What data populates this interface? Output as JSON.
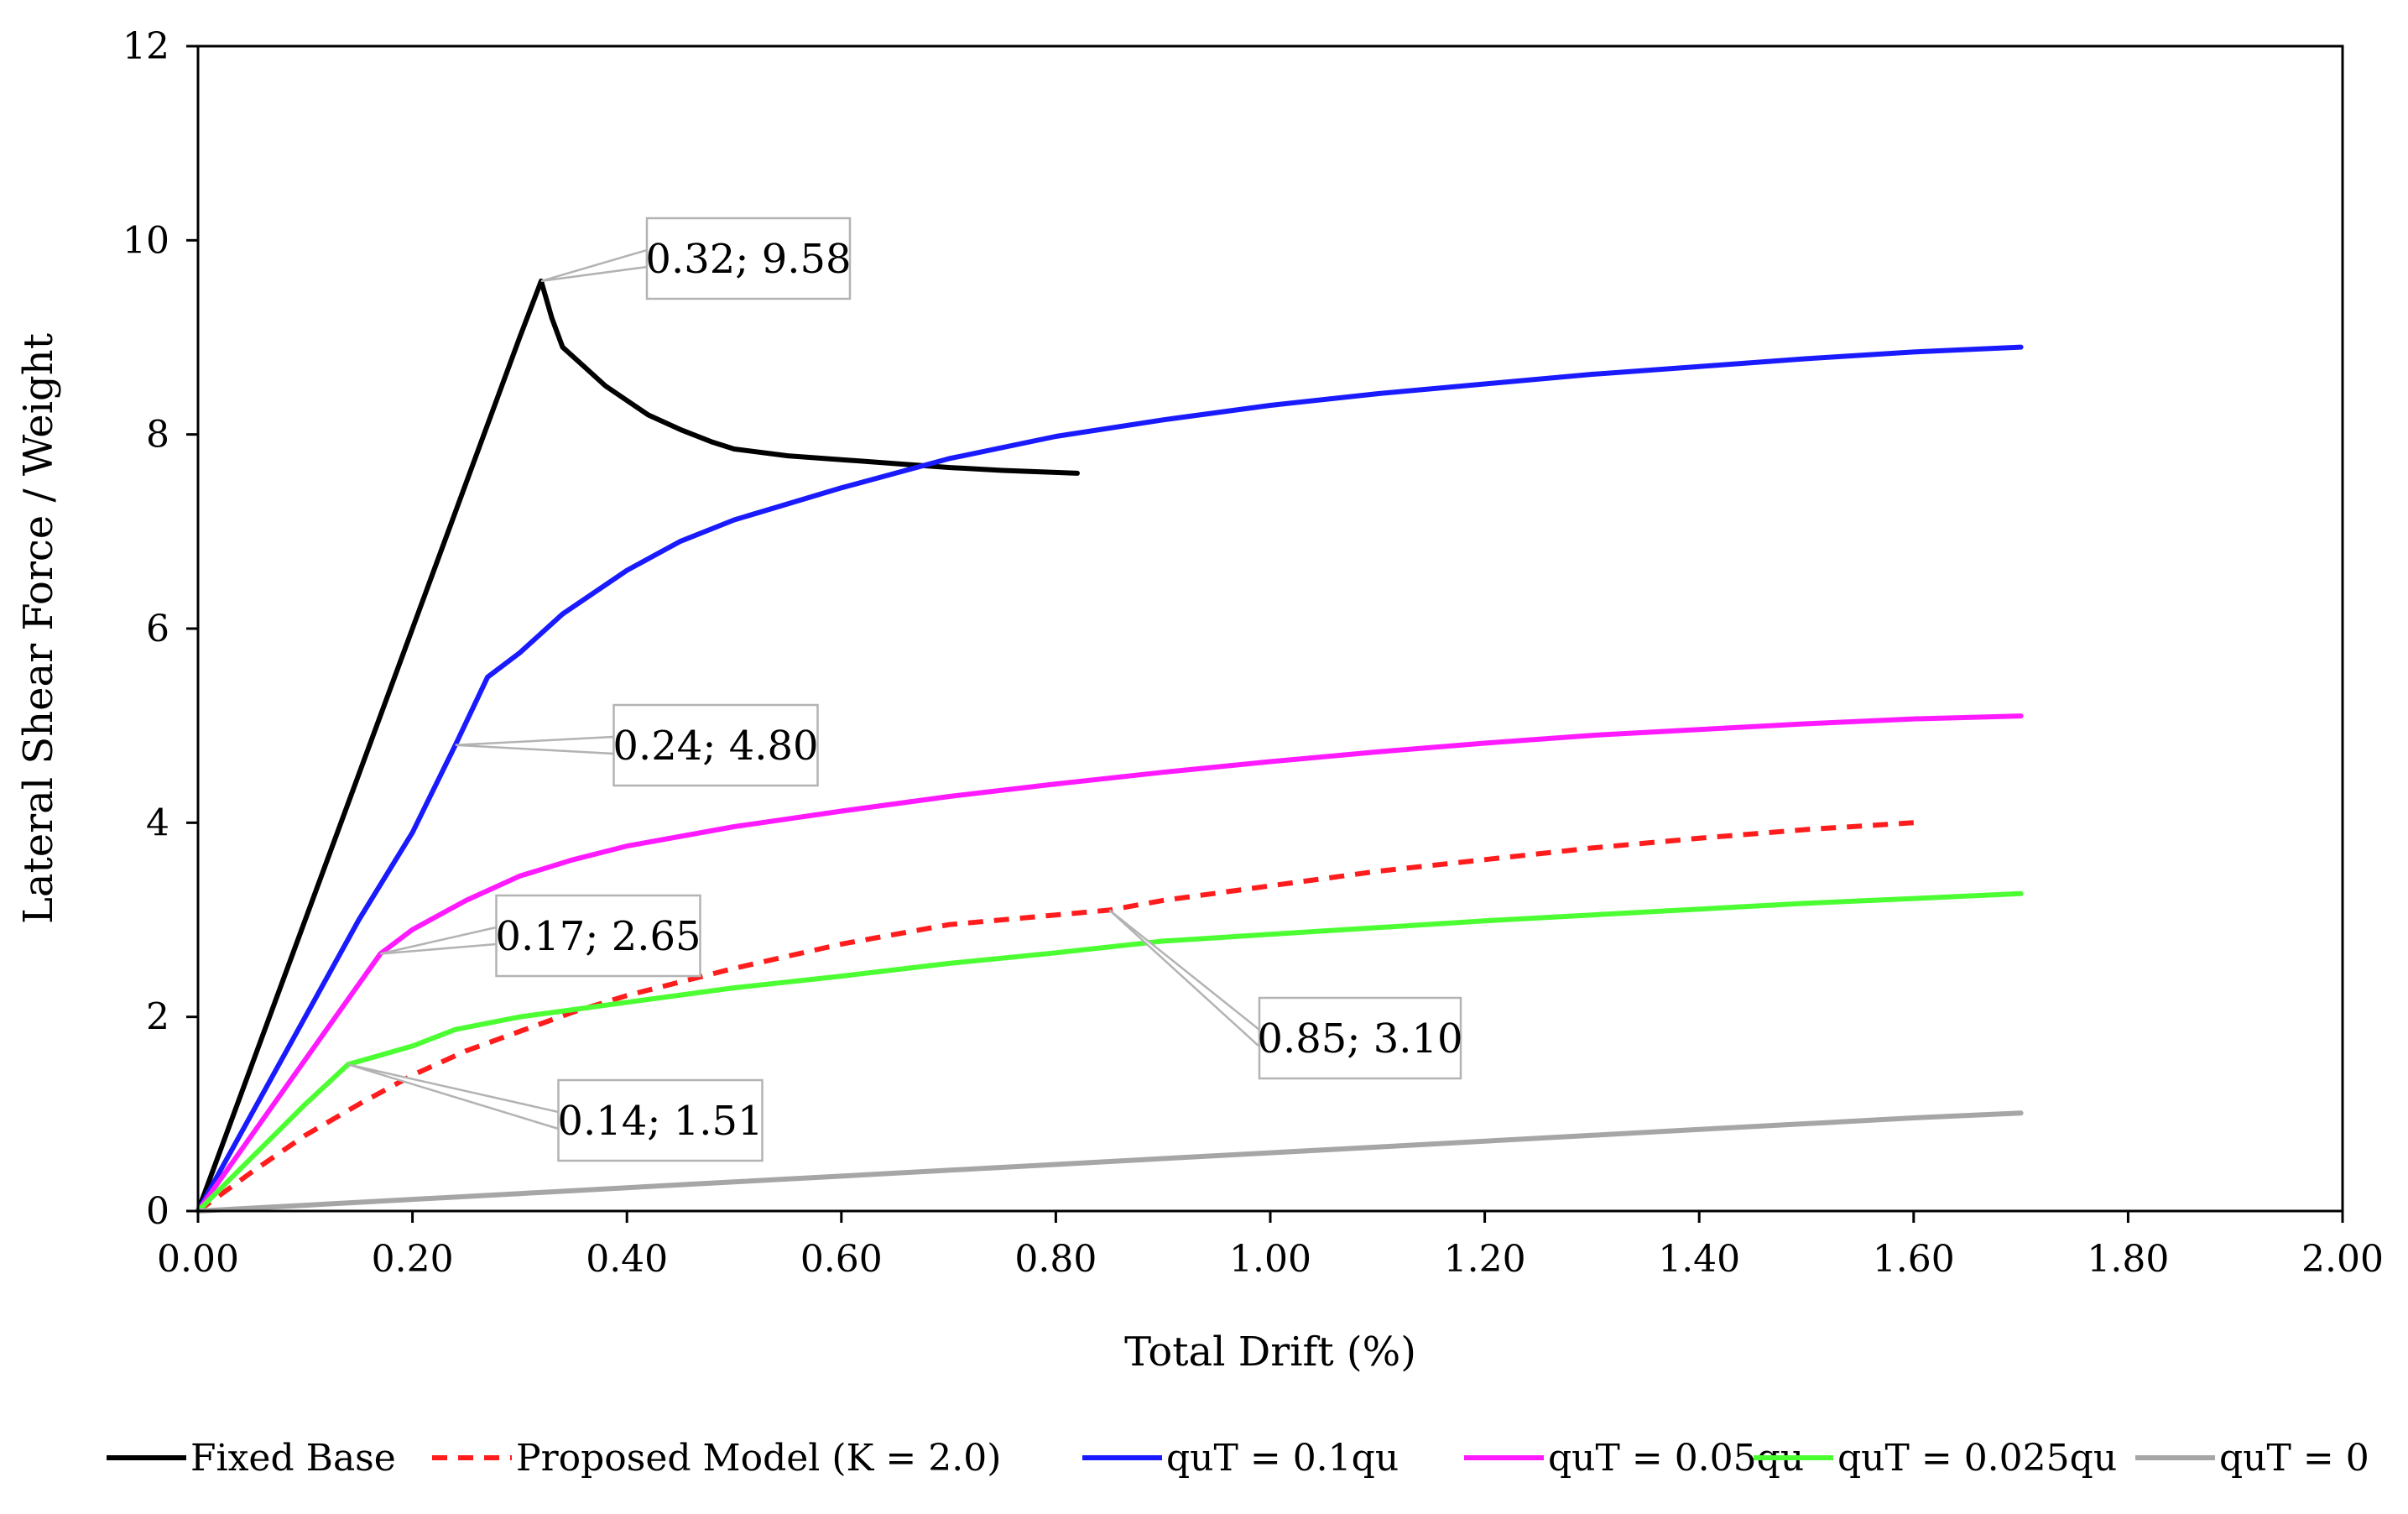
{
  "chart_data": {
    "type": "line",
    "title": "",
    "xlabel": "Total Drift (%)",
    "ylabel": "Lateral Shear Force / Weight",
    "xlim": [
      0,
      2.0
    ],
    "ylim": [
      0,
      12
    ],
    "x_ticks": [
      "0.00",
      "0.20",
      "0.40",
      "0.60",
      "0.80",
      "1.00",
      "1.20",
      "1.40",
      "1.60",
      "1.80",
      "2.00"
    ],
    "x_tick_values": [
      0,
      0.2,
      0.4,
      0.6,
      0.8,
      1.0,
      1.2,
      1.4,
      1.6,
      1.8,
      2.0
    ],
    "y_ticks": [
      "0",
      "2",
      "4",
      "6",
      "8",
      "10",
      "12"
    ],
    "y_tick_values": [
      0,
      2,
      4,
      6,
      8,
      10,
      12
    ],
    "grid": false,
    "legend_position": "bottom",
    "series": [
      {
        "name": "Fixed Base",
        "color": "#000000",
        "dash": "solid",
        "points": [
          [
            0,
            0
          ],
          [
            0.05,
            1.5
          ],
          [
            0.1,
            3.0
          ],
          [
            0.15,
            4.5
          ],
          [
            0.2,
            6.0
          ],
          [
            0.25,
            7.5
          ],
          [
            0.3,
            9.0
          ],
          [
            0.32,
            9.58
          ],
          [
            0.33,
            9.2
          ],
          [
            0.34,
            8.9
          ],
          [
            0.36,
            8.7
          ],
          [
            0.38,
            8.5
          ],
          [
            0.4,
            8.35
          ],
          [
            0.42,
            8.2
          ],
          [
            0.45,
            8.05
          ],
          [
            0.48,
            7.92
          ],
          [
            0.5,
            7.85
          ],
          [
            0.55,
            7.78
          ],
          [
            0.6,
            7.74
          ],
          [
            0.65,
            7.7
          ],
          [
            0.7,
            7.66
          ],
          [
            0.75,
            7.63
          ],
          [
            0.82,
            7.6
          ]
        ]
      },
      {
        "name": "Proposed Model (K = 2.0)",
        "color": "#ff1c1c",
        "dash": "dashed",
        "points": [
          [
            0,
            0
          ],
          [
            0.05,
            0.4
          ],
          [
            0.1,
            0.78
          ],
          [
            0.15,
            1.1
          ],
          [
            0.2,
            1.4
          ],
          [
            0.25,
            1.65
          ],
          [
            0.3,
            1.85
          ],
          [
            0.35,
            2.05
          ],
          [
            0.4,
            2.22
          ],
          [
            0.5,
            2.5
          ],
          [
            0.6,
            2.75
          ],
          [
            0.7,
            2.95
          ],
          [
            0.8,
            3.05
          ],
          [
            0.85,
            3.1
          ],
          [
            0.9,
            3.2
          ],
          [
            1.0,
            3.35
          ],
          [
            1.1,
            3.5
          ],
          [
            1.2,
            3.62
          ],
          [
            1.3,
            3.74
          ],
          [
            1.4,
            3.84
          ],
          [
            1.5,
            3.93
          ],
          [
            1.6,
            4.0
          ]
        ]
      },
      {
        "name": "quT = 0.1qu",
        "color": "#1a1aff",
        "dash": "solid",
        "points": [
          [
            0,
            0
          ],
          [
            0.05,
            1.0
          ],
          [
            0.1,
            2.0
          ],
          [
            0.15,
            3.0
          ],
          [
            0.2,
            3.9
          ],
          [
            0.24,
            4.8
          ],
          [
            0.27,
            5.5
          ],
          [
            0.3,
            5.75
          ],
          [
            0.34,
            6.15
          ],
          [
            0.4,
            6.6
          ],
          [
            0.45,
            6.9
          ],
          [
            0.5,
            7.12
          ],
          [
            0.6,
            7.45
          ],
          [
            0.7,
            7.75
          ],
          [
            0.8,
            7.98
          ],
          [
            0.9,
            8.15
          ],
          [
            1.0,
            8.3
          ],
          [
            1.1,
            8.42
          ],
          [
            1.2,
            8.52
          ],
          [
            1.3,
            8.62
          ],
          [
            1.4,
            8.7
          ],
          [
            1.5,
            8.78
          ],
          [
            1.6,
            8.85
          ],
          [
            1.7,
            8.9
          ]
        ]
      },
      {
        "name": "quT = 0.05qu",
        "color": "#ff1aff",
        "dash": "solid",
        "points": [
          [
            0,
            0
          ],
          [
            0.05,
            0.78
          ],
          [
            0.1,
            1.56
          ],
          [
            0.17,
            2.65
          ],
          [
            0.2,
            2.9
          ],
          [
            0.25,
            3.2
          ],
          [
            0.3,
            3.45
          ],
          [
            0.35,
            3.62
          ],
          [
            0.4,
            3.76
          ],
          [
            0.5,
            3.96
          ],
          [
            0.6,
            4.12
          ],
          [
            0.7,
            4.27
          ],
          [
            0.8,
            4.4
          ],
          [
            0.9,
            4.52
          ],
          [
            1.0,
            4.63
          ],
          [
            1.1,
            4.73
          ],
          [
            1.2,
            4.82
          ],
          [
            1.3,
            4.9
          ],
          [
            1.4,
            4.96
          ],
          [
            1.5,
            5.02
          ],
          [
            1.6,
            5.07
          ],
          [
            1.7,
            5.1
          ]
        ]
      },
      {
        "name": "quT = 0.025qu",
        "color": "#4cff32",
        "dash": "solid",
        "points": [
          [
            0,
            0
          ],
          [
            0.05,
            0.55
          ],
          [
            0.1,
            1.1
          ],
          [
            0.14,
            1.51
          ],
          [
            0.2,
            1.7
          ],
          [
            0.24,
            1.87
          ],
          [
            0.3,
            2.0
          ],
          [
            0.4,
            2.15
          ],
          [
            0.5,
            2.3
          ],
          [
            0.6,
            2.42
          ],
          [
            0.7,
            2.55
          ],
          [
            0.8,
            2.66
          ],
          [
            0.9,
            2.78
          ],
          [
            1.0,
            2.85
          ],
          [
            1.1,
            2.92
          ],
          [
            1.2,
            2.99
          ],
          [
            1.3,
            3.05
          ],
          [
            1.4,
            3.11
          ],
          [
            1.5,
            3.17
          ],
          [
            1.6,
            3.22
          ],
          [
            1.7,
            3.27
          ]
        ]
      },
      {
        "name": "quT = 0",
        "color": "#a6a6a6",
        "dash": "solid",
        "points": [
          [
            0,
            0
          ],
          [
            0.1,
            0.06
          ],
          [
            0.2,
            0.12
          ],
          [
            0.3,
            0.18
          ],
          [
            0.4,
            0.24
          ],
          [
            0.5,
            0.3
          ],
          [
            0.6,
            0.36
          ],
          [
            0.7,
            0.42
          ],
          [
            0.8,
            0.48
          ],
          [
            0.9,
            0.54
          ],
          [
            1.0,
            0.6
          ],
          [
            1.1,
            0.66
          ],
          [
            1.2,
            0.72
          ],
          [
            1.3,
            0.78
          ],
          [
            1.4,
            0.84
          ],
          [
            1.5,
            0.9
          ],
          [
            1.6,
            0.96
          ],
          [
            1.7,
            1.01
          ]
        ]
      }
    ],
    "annotations": [
      {
        "text": "0.32; 9.58",
        "x": 0.32,
        "y": 9.58
      },
      {
        "text": "0.24; 4.80",
        "x": 0.24,
        "y": 4.8
      },
      {
        "text": "0.17; 2.65",
        "x": 0.17,
        "y": 2.65
      },
      {
        "text": "0.14; 1.51",
        "x": 0.14,
        "y": 1.51
      },
      {
        "text": "0.85; 3.10",
        "x": 0.85,
        "y": 3.1
      }
    ]
  }
}
